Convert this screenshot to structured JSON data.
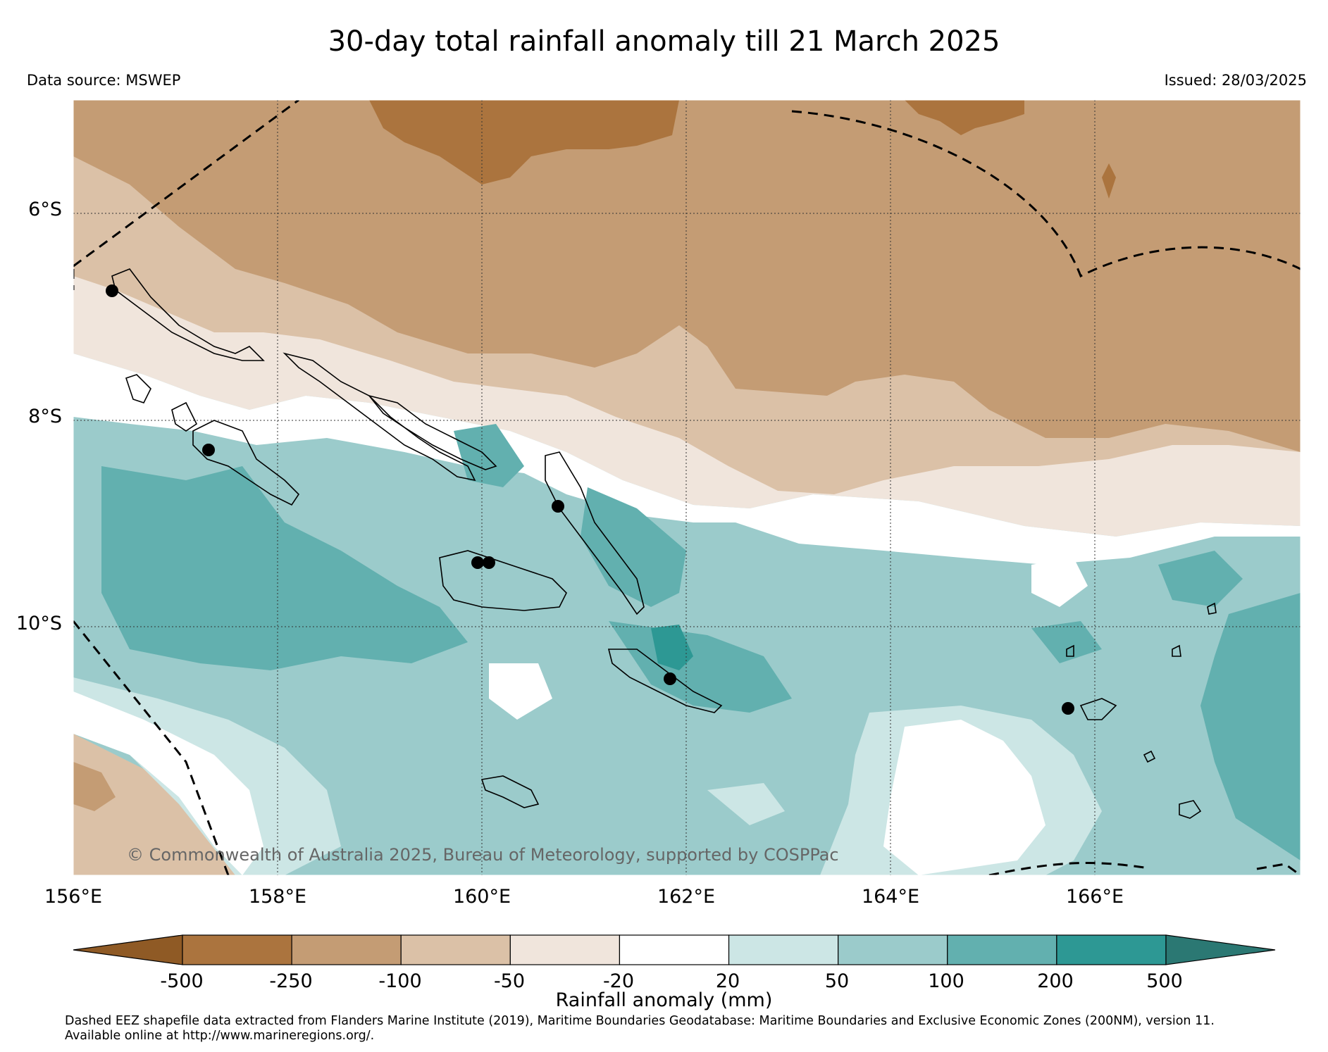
{
  "title": "30-day total rainfall anomaly till 21 March 2025",
  "data_source": "Data source: MSWEP",
  "issued": "Issued: 28/03/2025",
  "copyright": "© Commonwealth of Australia 2025, Bureau of Meteorology, supported by COSPPac",
  "map": {
    "lon_range": [
      156,
      168
    ],
    "lat_range": [
      -4.9,
      -12.4
    ],
    "lon_ticks": [
      {
        "value": 156,
        "label": "156°E"
      },
      {
        "value": 158,
        "label": "158°E"
      },
      {
        "value": 160,
        "label": "160°E"
      },
      {
        "value": 162,
        "label": "162°E"
      },
      {
        "value": 164,
        "label": "164°E"
      },
      {
        "value": 166,
        "label": "166°E"
      }
    ],
    "lat_ticks": [
      {
        "value": -6,
        "label": "6°S"
      },
      {
        "value": -8,
        "label": "8°S"
      },
      {
        "value": -10,
        "label": "10°S"
      }
    ],
    "stations": [
      {
        "lon": 156.4,
        "lat": -6.8
      },
      {
        "lon": 157.3,
        "lat": -8.3
      },
      {
        "lon": 160.7,
        "lat": -8.8
      },
      {
        "lon": 159.9,
        "lat": -9.4
      },
      {
        "lon": 160.05,
        "lat": -9.4
      },
      {
        "lon": 161.8,
        "lat": -10.5
      },
      {
        "lon": 165.8,
        "lat": -10.8
      }
    ]
  },
  "colorbar": {
    "title": "Rainfall anomaly (mm)",
    "labels": [
      "-500",
      "-250",
      "-100",
      "-50",
      "-20",
      "20",
      "50",
      "100",
      "200",
      "500"
    ],
    "colors": [
      "#8f5a25",
      "#ab743e",
      "#c49c74",
      "#dbc1a7",
      "#f0e5dc",
      "#ffffff",
      "#cce6e5",
      "#9bcbcb",
      "#62b0af",
      "#2d9894",
      "#2b7873"
    ]
  },
  "footnote": "Dashed EEZ shapefile data extracted from Flanders Marine Institute (2019), Maritime Boundaries Geodatabase: Maritime Boundaries and Exclusive Economic Zones (200NM), version 11.\nAvailable online at http://www.marineregions.org/."
}
